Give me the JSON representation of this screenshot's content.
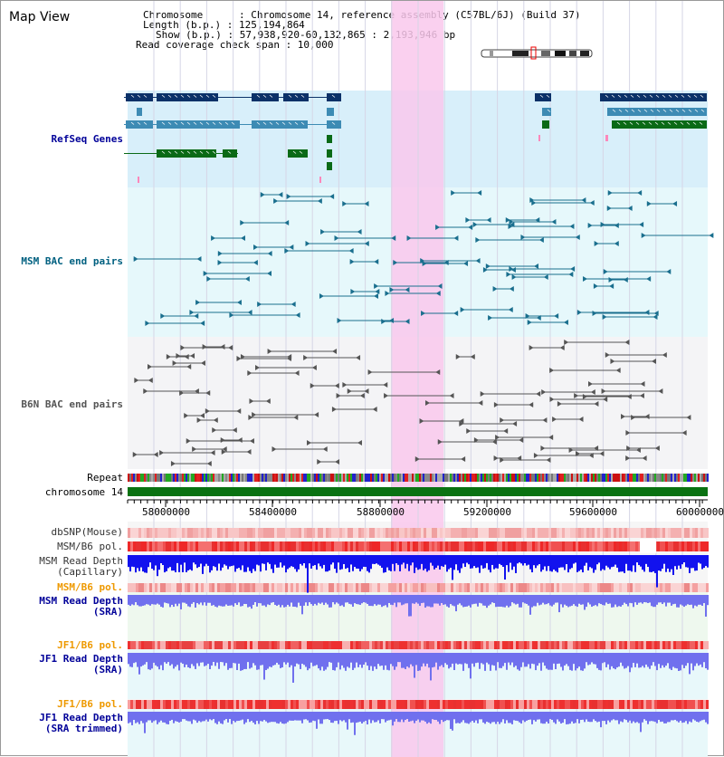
{
  "title": "Map View",
  "info": {
    "chromosome": "Chromosome      : Chromosome 14, reference assembly (C57BL/6J) (Build 37)",
    "length": "Length (b.p.) : 125,194,864",
    "show": "Show (b.p.) : 57,938,920-60,132,865 : 2,193,946 bp",
    "coverage": "Read coverage check span : 10,000"
  },
  "tracks": {
    "refseq": {
      "label": "RefSeq Genes",
      "color": "#000099"
    },
    "msm_bac": {
      "label": "MSM BAC end pairs",
      "color": "#006080"
    },
    "b6n_bac": {
      "label": "B6N BAC end pairs",
      "color": "#555555"
    },
    "repeat": {
      "label": "Repeat",
      "color": "#000000"
    },
    "chromosome": {
      "label": "chromosome 14",
      "color": "#000000"
    },
    "dbsnp": {
      "label": "dbSNP(Mouse)",
      "color": "#333333"
    },
    "msm_b6_pol_1": {
      "label": "MSM/B6 pol.",
      "color": "#333333"
    },
    "msm_depth_cap": {
      "label": "MSM Read Depth\n(Capillary)",
      "color": "#333333"
    },
    "msm_b6_pol_2": {
      "label": "MSM/B6 pol.",
      "color": "#ee9900"
    },
    "msm_depth_sra": {
      "label": "MSM Read Depth\n(SRA)",
      "color": "#000099"
    },
    "jf1_b6_pol_1": {
      "label": "JF1/B6 pol.",
      "color": "#ee9900"
    },
    "jf1_depth_sra": {
      "label": "JF1 Read Depth\n(SRA)",
      "color": "#000099"
    },
    "jf1_b6_pol_2": {
      "label": "JF1/B6 pol.",
      "color": "#ee9900"
    },
    "jf1_depth_trim": {
      "label": "JF1 Read Depth\n(SRA trimmed)",
      "color": "#000099"
    }
  },
  "axis": {
    "ticks": [
      "58000000",
      "58400000",
      "58800000",
      "59200000",
      "59600000",
      "60000000"
    ]
  },
  "colors": {
    "highlight": "#f9c8ec",
    "refseq_bg": "#d8effa",
    "msm_bg": "#e6f8fb",
    "b6n_bg": "#f4f4f6",
    "gene_dark": "#0b3168",
    "gene_mid": "#3d8bb4",
    "gene_green": "#0a6a16",
    "msm_pair": "#1a6f8e",
    "b6n_pair": "#555555",
    "chrom_bar": "#0a7212",
    "depth_blue": "#1212ee",
    "depth_light": "#7070ee"
  }
}
